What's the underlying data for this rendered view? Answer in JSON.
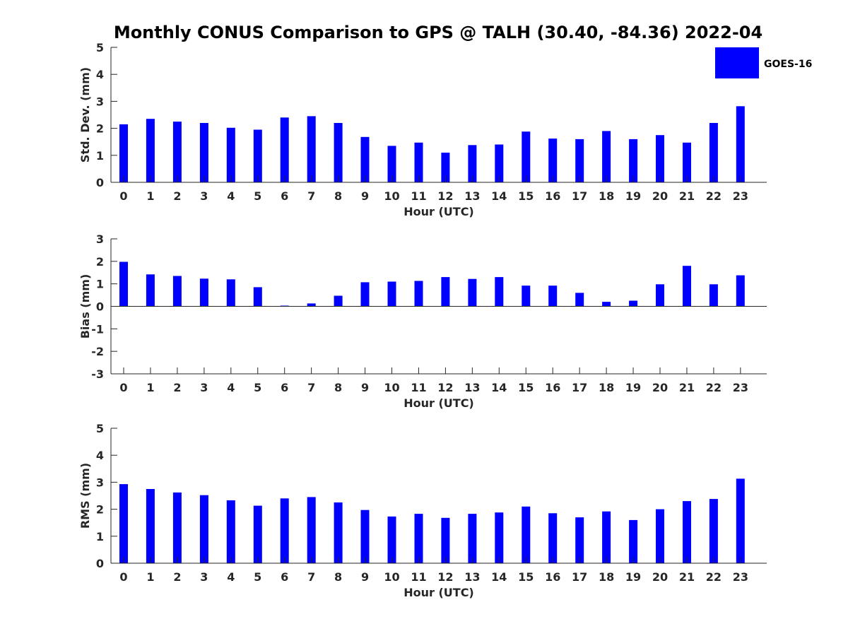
{
  "title": "Monthly CONUS Comparison to GPS @ TALH (30.40, -84.36) 2022-04",
  "legend": {
    "label": "GOES-16",
    "color": "#0000ff",
    "placement": "top-right"
  },
  "chart_data": [
    {
      "type": "bar",
      "xlabel": "Hour (UTC)",
      "ylabel": "Std. Dev. (mm)",
      "ylim": [
        0,
        5
      ],
      "yticks": [
        0,
        1,
        2,
        3,
        4,
        5
      ],
      "categories": [
        "0",
        "1",
        "2",
        "3",
        "4",
        "5",
        "6",
        "7",
        "8",
        "9",
        "10",
        "11",
        "12",
        "13",
        "14",
        "15",
        "16",
        "17",
        "18",
        "19",
        "20",
        "21",
        "22",
        "23"
      ],
      "series": [
        {
          "name": "GOES-16",
          "color": "#0000ff",
          "values": [
            2.15,
            2.35,
            2.25,
            2.2,
            2.02,
            1.95,
            2.4,
            2.45,
            2.2,
            1.68,
            1.35,
            1.47,
            1.1,
            1.38,
            1.4,
            1.88,
            1.62,
            1.6,
            1.9,
            1.6,
            1.75,
            1.47,
            2.2,
            2.82
          ]
        }
      ]
    },
    {
      "type": "bar",
      "xlabel": "Hour (UTC)",
      "ylabel": "Bias (mm)",
      "ylim": [
        -3,
        3
      ],
      "yticks": [
        -3,
        -2,
        -1,
        0,
        1,
        2,
        3
      ],
      "categories": [
        "0",
        "1",
        "2",
        "3",
        "4",
        "5",
        "6",
        "7",
        "8",
        "9",
        "10",
        "11",
        "12",
        "13",
        "14",
        "15",
        "16",
        "17",
        "18",
        "19",
        "20",
        "21",
        "22",
        "23"
      ],
      "series": [
        {
          "name": "GOES-16",
          "color": "#0000ff",
          "values": [
            1.98,
            1.42,
            1.35,
            1.23,
            1.2,
            0.85,
            0.03,
            0.13,
            0.47,
            1.07,
            1.1,
            1.13,
            1.3,
            1.22,
            1.3,
            0.92,
            0.92,
            0.6,
            0.2,
            0.25,
            0.98,
            1.8,
            0.98,
            1.38
          ]
        }
      ]
    },
    {
      "type": "bar",
      "xlabel": "Hour (UTC)",
      "ylabel": "RMS (mm)",
      "ylim": [
        0,
        5
      ],
      "yticks": [
        0,
        1,
        2,
        3,
        4,
        5
      ],
      "categories": [
        "0",
        "1",
        "2",
        "3",
        "4",
        "5",
        "6",
        "7",
        "8",
        "9",
        "10",
        "11",
        "12",
        "13",
        "14",
        "15",
        "16",
        "17",
        "18",
        "19",
        "20",
        "21",
        "22",
        "23"
      ],
      "series": [
        {
          "name": "GOES-16",
          "color": "#0000ff",
          "values": [
            2.93,
            2.75,
            2.62,
            2.52,
            2.33,
            2.13,
            2.4,
            2.45,
            2.25,
            1.97,
            1.73,
            1.83,
            1.68,
            1.83,
            1.88,
            2.1,
            1.85,
            1.7,
            1.92,
            1.6,
            2.0,
            2.3,
            2.38,
            3.13
          ]
        }
      ]
    }
  ]
}
